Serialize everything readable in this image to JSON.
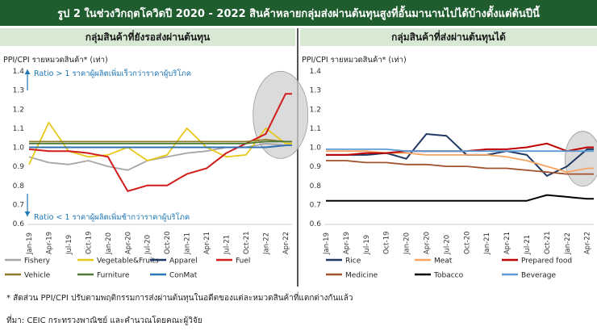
{
  "title": "รูป 2 ในช่วงวิกฤตโควิดปี 2020 - 2022 สินค้าหลายกลุ่มส่งผ่านต้นทุนสูงที่อั้นมานานไปได้บ้างตั้งแต่ต้นปีนี้",
  "left_panel": {
    "header": "กลุ่มสินค้าที่ยังรอส่งผ่านต้นทุน",
    "ylabel": "PPI/CPI รายหมวดสินค้า* (เท่า)",
    "annotation_up": "Ratio > 1 ราคาผู้ผลิตเพิ่มเร็วกว่าราคาผู้บริโภค",
    "annotation_down": "Ratio < 1 ราคาผู้ผลิตเพิ่มช้ากว่าราคาผู้บริโภค"
  },
  "right_panel": {
    "header": "กลุ่มสินค้าที่ส่งผ่านต้นทุนได้",
    "ylabel": "PPI/CPI รายหมวดสินค้า* (เท่า)"
  },
  "footnote": "* สัดส่วน PPI/CPI ปรับตามพฤติกรรมการส่งผ่านต้นทุนในอดีตของแต่ละหมวดสินค้าที่แตกต่างกันแล้ว",
  "source": "ที่มา: CEIC กระทรวงพาณิชย์ และคำนวณโดยคณะผู้วิจัย",
  "colors": {
    "title_bg": "#1f5c2e",
    "panel_header_bg": "#d7e9d2",
    "annotation": "#1f77b4"
  },
  "chart_data": [
    {
      "type": "line",
      "ylim": [
        0.6,
        1.4
      ],
      "yticks": [
        "0.6",
        "0.7",
        "0.8",
        "0.9",
        "1.0",
        "1.1",
        "1.2",
        "1.3",
        "1.4"
      ],
      "x": [
        "Jan-19",
        "Apr-19",
        "Jul-19",
        "Oct-19",
        "Jan-20",
        "Apr-20",
        "Jul-20",
        "Oct-20",
        "Jan-21",
        "Apr-21",
        "Jul-21",
        "Oct-21",
        "Jan-22",
        "Apr-22"
      ],
      "highlight": "Jan-22 – May-22 (ellipse)",
      "series": [
        {
          "name": "Fishery",
          "color": "#a6a6a6",
          "values": [
            0.95,
            0.92,
            0.91,
            0.93,
            0.9,
            0.88,
            0.93,
            0.95,
            0.97,
            0.98,
            1.0,
            1.0,
            1.02,
            1.01
          ]
        },
        {
          "name": "Vegetable&Fruits",
          "color": "#e8c81a",
          "values": [
            0.91,
            1.13,
            0.98,
            0.95,
            0.96,
            1.0,
            0.93,
            0.96,
            1.1,
            1.0,
            0.95,
            0.96,
            1.1,
            1.02
          ]
        },
        {
          "name": "Apparel",
          "color": "#1f3864",
          "values": [
            1.0,
            1.0,
            1.0,
            1.0,
            1.0,
            1.0,
            1.0,
            1.0,
            1.0,
            1.0,
            1.0,
            1.0,
            1.0,
            1.01
          ]
        },
        {
          "name": "Fuel",
          "color": "#d11c1c",
          "values": [
            0.99,
            0.98,
            0.98,
            0.97,
            0.95,
            0.77,
            0.8,
            0.8,
            0.86,
            0.89,
            0.97,
            1.02,
            1.07,
            1.28
          ]
        },
        {
          "name": "Vehicle",
          "color": "#8a7a2a",
          "values": [
            1.03,
            1.03,
            1.03,
            1.03,
            1.03,
            1.03,
            1.03,
            1.03,
            1.03,
            1.03,
            1.03,
            1.03,
            1.04,
            1.03
          ]
        },
        {
          "name": "Furniture",
          "color": "#4f7a3a",
          "values": [
            1.02,
            1.02,
            1.02,
            1.02,
            1.02,
            1.02,
            1.02,
            1.02,
            1.02,
            1.02,
            1.02,
            1.02,
            1.03,
            1.03
          ]
        },
        {
          "name": "ConMat",
          "color": "#2e75b6",
          "values": [
            1.0,
            1.0,
            1.0,
            1.0,
            1.0,
            1.0,
            1.0,
            1.0,
            1.0,
            1.0,
            1.0,
            1.0,
            1.0,
            1.01
          ]
        }
      ]
    },
    {
      "type": "line",
      "ylim": [
        0.6,
        1.4
      ],
      "yticks": [
        "0.6",
        "0.7",
        "0.8",
        "0.9",
        "1.0",
        "1.1",
        "1.2",
        "1.3",
        "1.4"
      ],
      "x": [
        "Jan-19",
        "Apr-19",
        "Jul-19",
        "Oct-19",
        "Jan-20",
        "Apr-20",
        "Jul-20",
        "Oct-20",
        "Jan-21",
        "Apr-21",
        "Jul-21",
        "Oct-21",
        "Jan-22",
        "Apr-22"
      ],
      "highlight": "Jan-22 – May-22 (ellipse)",
      "series": [
        {
          "name": "Rice",
          "color": "#1f3864",
          "values": [
            0.96,
            0.96,
            0.96,
            0.97,
            0.94,
            1.07,
            1.06,
            0.96,
            0.96,
            0.98,
            0.96,
            0.85,
            0.9,
            0.99
          ]
        },
        {
          "name": "Meat",
          "color": "#f4a460",
          "values": [
            0.98,
            0.98,
            0.98,
            0.97,
            0.97,
            0.96,
            0.96,
            0.96,
            0.96,
            0.95,
            0.93,
            0.9,
            0.87,
            0.89
          ]
        },
        {
          "name": "Prepared food",
          "color": "#c00000",
          "values": [
            0.96,
            0.96,
            0.97,
            0.97,
            0.98,
            0.98,
            0.98,
            0.98,
            0.99,
            0.99,
            1.0,
            1.02,
            0.98,
            1.0
          ]
        },
        {
          "name": "Medicine",
          "color": "#a0522d",
          "values": [
            0.93,
            0.93,
            0.92,
            0.92,
            0.91,
            0.91,
            0.9,
            0.9,
            0.89,
            0.89,
            0.88,
            0.87,
            0.86,
            0.86
          ]
        },
        {
          "name": "Tobacco",
          "color": "#000000",
          "values": [
            0.72,
            0.72,
            0.72,
            0.72,
            0.72,
            0.72,
            0.72,
            0.72,
            0.72,
            0.72,
            0.72,
            0.75,
            0.74,
            0.73
          ]
        },
        {
          "name": "Beverage",
          "color": "#5b9bd5",
          "values": [
            0.99,
            0.99,
            0.99,
            0.99,
            0.98,
            0.98,
            0.98,
            0.98,
            0.98,
            0.98,
            0.98,
            0.98,
            0.98,
            0.98
          ]
        }
      ]
    }
  ]
}
